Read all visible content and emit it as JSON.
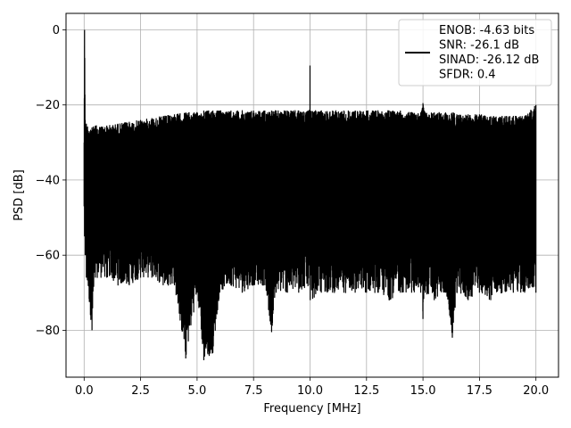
{
  "chart_data": {
    "type": "line",
    "title": "",
    "xlabel": "Frequency [MHz]",
    "ylabel": "PSD [dB]",
    "xlim": [
      -0.8,
      21.0
    ],
    "ylim": [
      -92.5,
      4.4
    ],
    "xticks": [
      0.0,
      2.5,
      5.0,
      7.5,
      10.0,
      12.5,
      15.0,
      17.5,
      20.0
    ],
    "xtick_labels": [
      "0.0",
      "2.5",
      "5.0",
      "7.5",
      "10.0",
      "12.5",
      "15.0",
      "17.5",
      "20.0"
    ],
    "yticks": [
      0,
      -20,
      -40,
      -60,
      -80
    ],
    "ytick_labels": [
      "0",
      "−20",
      "−40",
      "−60",
      "−80"
    ],
    "grid": true,
    "legend_position": "top-right",
    "line_color": "#000000",
    "series": [
      {
        "name": "ENOB: -4.63 bits\nSNR: -26.1 dB\nSINAD: -26.12 dB\nSFDR: 0.4",
        "description": "dense noise floor between about -66 dB and -22 dB across 0-20 MHz",
        "x": [
          0.0,
          0.02,
          0.05,
          0.1,
          0.35,
          0.5,
          1.0,
          1.5,
          2.0,
          2.5,
          3.0,
          3.5,
          4.0,
          4.5,
          5.0,
          5.3,
          5.7,
          6.0,
          6.5,
          7.0,
          7.5,
          8.0,
          8.3,
          8.5,
          9.0,
          9.5,
          9.99,
          10.0,
          10.01,
          10.5,
          11.0,
          11.5,
          12.0,
          12.5,
          13.0,
          13.5,
          14.0,
          14.5,
          14.9,
          15.0,
          15.1,
          15.5,
          16.0,
          16.3,
          16.5,
          17.0,
          17.5,
          18.0,
          18.5,
          19.0,
          19.5,
          20.0
        ],
        "upper_envelope": [
          -30,
          0,
          -24,
          -25,
          -26,
          -25.5,
          -25.5,
          -25,
          -24.5,
          -24,
          -23.5,
          -23,
          -22.5,
          -22,
          -22,
          -21.5,
          -21.5,
          -21.5,
          -21.5,
          -21.5,
          -21.5,
          -21.5,
          -21.5,
          -21.5,
          -21.5,
          -21.5,
          -21.5,
          -9.5,
          -21.5,
          -21.5,
          -21.5,
          -21.5,
          -21.5,
          -21.5,
          -21.5,
          -21.5,
          -21.5,
          -22,
          -22,
          -19.5,
          -22,
          -22,
          -22,
          -22,
          -22.5,
          -22.5,
          -22.5,
          -23,
          -23,
          -23,
          -23,
          -20
        ],
        "lower_envelope": [
          -47,
          -55,
          -60,
          -66,
          -80,
          -66,
          -66,
          -68,
          -68,
          -66,
          -66,
          -68,
          -68,
          -87.5,
          -70,
          -88,
          -86,
          -70,
          -68,
          -70,
          -68,
          -68,
          -80.5,
          -70,
          -70,
          -70,
          -68,
          -68,
          -72,
          -70,
          -70,
          -70,
          -70,
          -70,
          -70,
          -72,
          -70,
          -70,
          -70,
          -77,
          -70,
          -72,
          -70,
          -82,
          -70,
          -72,
          -70,
          -72,
          -70,
          -70,
          -70,
          -70
        ]
      }
    ]
  }
}
